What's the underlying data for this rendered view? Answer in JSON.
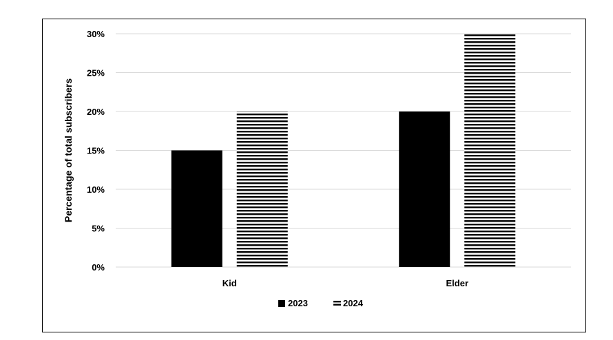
{
  "chart_data": {
    "type": "bar",
    "title": "",
    "xlabel": "",
    "ylabel": "Percentage of total subscribers",
    "categories": [
      "Kid",
      "Elder"
    ],
    "series": [
      {
        "name": "2023",
        "values": [
          15,
          20
        ],
        "color": "#000000",
        "pattern": "solid"
      },
      {
        "name": "2024",
        "values": [
          20,
          30
        ],
        "color": "#000000",
        "pattern": "horizontal-stripes"
      }
    ],
    "ylim": [
      0,
      30
    ],
    "yticks": [
      "0%",
      "5%",
      "10%",
      "15%",
      "20%",
      "25%",
      "30%"
    ],
    "ytick_values": [
      0,
      5,
      10,
      15,
      20,
      25,
      30
    ],
    "grid": true,
    "legend_position": "bottom",
    "gridline_color": "#d9d9d9"
  }
}
